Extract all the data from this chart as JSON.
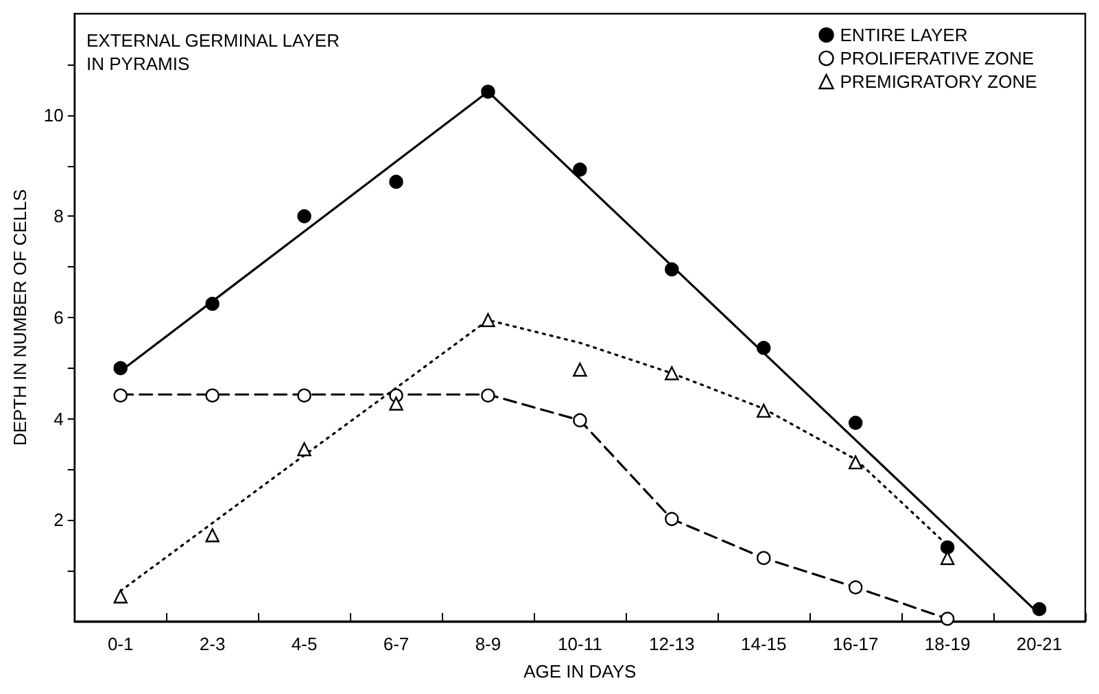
{
  "chart_data": {
    "type": "scatter",
    "title": "EXTERNAL GERMINAL LAYER\nIN PYRAMIS",
    "xlabel": "AGE IN DAYS",
    "ylabel": "DEPTH IN NUMBER OF CELLS",
    "categories": [
      "0-1",
      "2-3",
      "4-5",
      "6-7",
      "8-9",
      "10-11",
      "12-13",
      "14-15",
      "16-17",
      "18-19",
      "20-21"
    ],
    "series": [
      {
        "name": "ENTIRE LAYER",
        "color": "#000000",
        "marker": "circle",
        "values": [
          5.0,
          6.27,
          8.0,
          8.68,
          10.46,
          8.92,
          6.95,
          5.4,
          3.92,
          1.46,
          0.24
        ]
      },
      {
        "name": "PROLIFERATIVE ZONE",
        "color": "#ffffff",
        "marker": "circle",
        "values": [
          4.46,
          4.46,
          4.46,
          4.46,
          4.46,
          3.97,
          2.02,
          1.25,
          0.67,
          0.05,
          null
        ]
      },
      {
        "name": "PREMIGRATORY ZONE",
        "color": "#ffffff",
        "marker": "triangle",
        "values": [
          0.49,
          1.7,
          3.4,
          4.3,
          5.95,
          4.97,
          4.9,
          4.16,
          3.14,
          1.25,
          null
        ]
      },
      {
        "type": "line",
        "color": "#000000",
        "marker": "none",
        "line_style": "solid",
        "values": [
          4.94,
          6.32,
          7.7,
          9.08,
          10.46,
          8.74,
          7.02,
          5.3,
          3.58,
          1.86,
          0.14
        ]
      },
      {
        "type": "line",
        "color": "#000000",
        "marker": "none",
        "line_style": "dashed",
        "values": [
          4.48,
          4.48,
          4.48,
          4.48,
          4.48,
          3.97,
          2.02,
          1.25,
          0.67,
          0.05,
          null
        ]
      },
      {
        "type": "line",
        "color": "#000000",
        "marker": "none",
        "line_style": "dotted",
        "values": [
          0.6,
          1.94,
          3.28,
          4.61,
          5.95,
          5.5,
          4.9,
          4.2,
          3.2,
          1.5,
          null
        ]
      }
    ],
    "ylim": [
      0,
      12
    ],
    "yticks": [
      {
        "value": 1,
        "label": null
      },
      2,
      {
        "value": 3,
        "label": null
      },
      4,
      {
        "value": 5,
        "label": null
      },
      6,
      {
        "value": 7,
        "label": null
      },
      8,
      {
        "value": 9,
        "label": null
      },
      10,
      {
        "value": 11,
        "label": null
      }
    ],
    "grid": false,
    "legend": "top right"
  }
}
